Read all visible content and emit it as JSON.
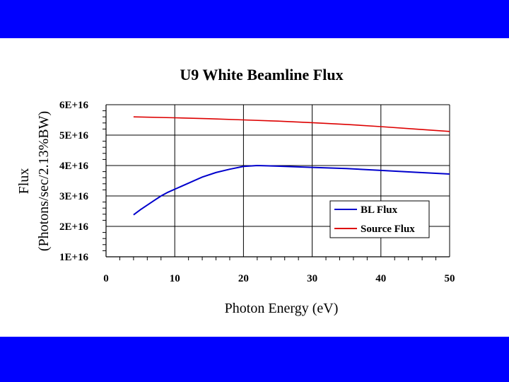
{
  "colors": {
    "band": "#0000ff",
    "bl_flux": "#0000cc",
    "source_flux": "#dd0000"
  },
  "chart_data": {
    "type": "line",
    "title": "U9 White Beamline Flux",
    "xlabel": "Photon Energy (eV)",
    "ylabel_line1": "Flux",
    "ylabel_line2": "(Photons/sec/2.13%BW)",
    "xlim": [
      0,
      50
    ],
    "ylim": [
      1e+16,
      6e+16
    ],
    "xticks": [
      0,
      10,
      20,
      30,
      40,
      50
    ],
    "xtick_labels": [
      "0",
      "10",
      "20",
      "30",
      "40",
      "50"
    ],
    "yticks": [
      1e+16,
      2e+16,
      3e+16,
      4e+16,
      5e+16,
      6e+16
    ],
    "ytick_labels": [
      "1E+16",
      "2E+16",
      "3E+16",
      "4E+16",
      "5E+16",
      "6E+16"
    ],
    "grid": true,
    "legend_position": "bottom-right",
    "series": [
      {
        "name": "BL Flux",
        "color": "#0000cc",
        "x": [
          4,
          5,
          6,
          7,
          8,
          9,
          10,
          12,
          14,
          16,
          18,
          20,
          22,
          25,
          30,
          35,
          40,
          45,
          50
        ],
        "y": [
          2.38e+16,
          2.55e+16,
          2.7e+16,
          2.85e+16,
          3e+16,
          3.12e+16,
          3.22e+16,
          3.42e+16,
          3.62e+16,
          3.77e+16,
          3.88e+16,
          3.97e+16,
          4e+16,
          3.98e+16,
          3.94e+16,
          3.9e+16,
          3.84e+16,
          3.78e+16,
          3.72e+16
        ]
      },
      {
        "name": "Source Flux",
        "color": "#dd0000",
        "x": [
          4,
          10,
          15,
          20,
          25,
          30,
          35,
          40,
          45,
          50
        ],
        "y": [
          5.6e+16,
          5.57e+16,
          5.54e+16,
          5.5e+16,
          5.46e+16,
          5.41e+16,
          5.35e+16,
          5.28e+16,
          5.2e+16,
          5.12e+16
        ]
      }
    ]
  }
}
